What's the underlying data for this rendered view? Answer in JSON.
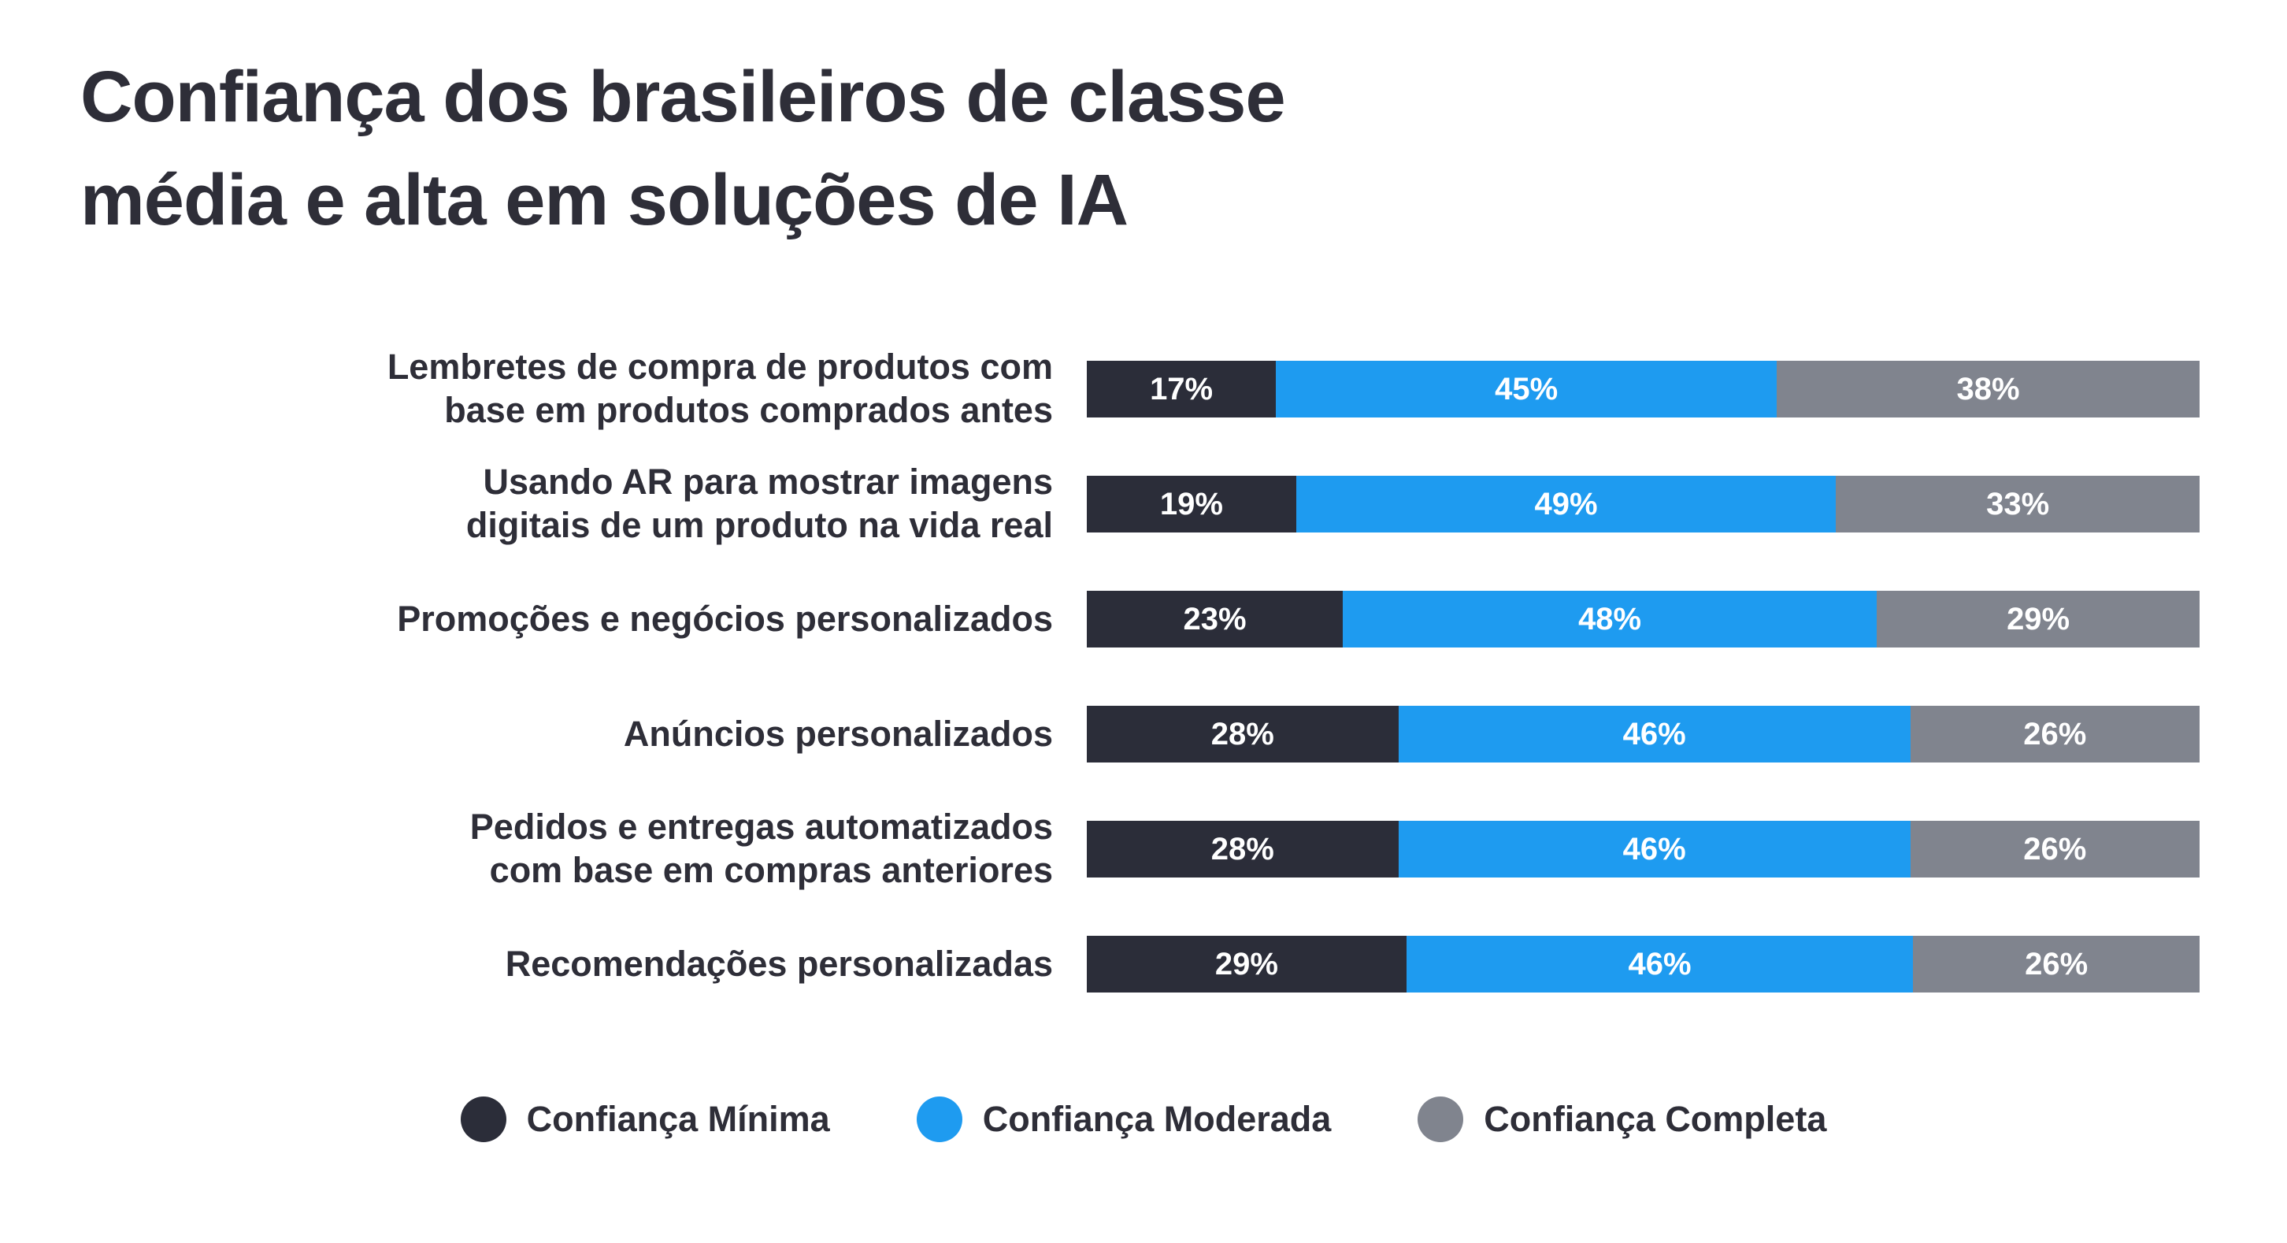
{
  "title": {
    "line1": "Confiança dos brasileiros de classe",
    "line2": "média e alta em soluções de IA"
  },
  "colors": {
    "minimal": "#2b2d39",
    "moderate": "#1e9bf0",
    "complete": "#80848e",
    "title_text": "#2e2e38",
    "bar_value_text": "#ffffff",
    "background": "#ffffff"
  },
  "legend": [
    {
      "label": "Confiança Mínima",
      "color_key": "minimal"
    },
    {
      "label": "Confiança Moderada",
      "color_key": "moderate"
    },
    {
      "label": "Confiança Completa",
      "color_key": "complete"
    }
  ],
  "chart_data": {
    "type": "bar",
    "orientation": "horizontal",
    "stacked": true,
    "unit": "%",
    "title": "Confiança dos brasileiros de classe média e alta em soluções de IA",
    "legend_position": "bottom",
    "categories": [
      "Lembretes de compra de produtos com\nbase em produtos comprados antes",
      "Usando AR para mostrar imagens\ndigitais de um produto na vida real",
      "Promoções e negócios personalizados",
      "Anúncios personalizados",
      "Pedidos e entregas automatizados\ncom base em compras anteriores",
      "Recomendações personalizadas"
    ],
    "series": [
      {
        "name": "Confiança Mínima",
        "values": [
          17,
          19,
          23,
          28,
          28,
          29
        ]
      },
      {
        "name": "Confiança Moderada",
        "values": [
          45,
          49,
          48,
          46,
          46,
          46
        ]
      },
      {
        "name": "Confiança Completa",
        "values": [
          38,
          33,
          29,
          26,
          26,
          26
        ]
      }
    ]
  }
}
